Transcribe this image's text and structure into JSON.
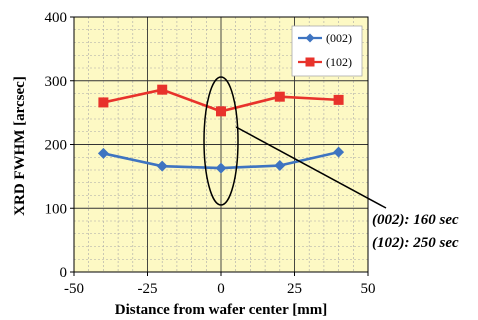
{
  "chart_data": {
    "type": "line",
    "title": "",
    "xlabel": "Distance from wafer center [mm]",
    "ylabel": "XRD  FWHM [arcsec]",
    "xlim": [
      -50,
      50
    ],
    "ylim": [
      0,
      400
    ],
    "x_ticks": [
      "-50",
      "-25",
      "0",
      "25",
      "50"
    ],
    "y_ticks": [
      "0",
      "100",
      "200",
      "300",
      "400"
    ],
    "grid": true,
    "legend_position": "top-right",
    "background_color": "#fdf9c4",
    "series": [
      {
        "name": "(002)",
        "color": "#3e74c1",
        "marker": "diamond",
        "x": [
          -40,
          -20,
          0,
          20,
          40
        ],
        "y": [
          186,
          166,
          163,
          167,
          188
        ]
      },
      {
        "name": "(102)",
        "color": "#e8322b",
        "marker": "square",
        "x": [
          -40,
          -20,
          0,
          20,
          40
        ],
        "y": [
          266,
          286,
          252,
          275,
          270
        ]
      }
    ],
    "annotations": [
      "(002): 160 sec",
      "(102): 250 sec"
    ]
  }
}
